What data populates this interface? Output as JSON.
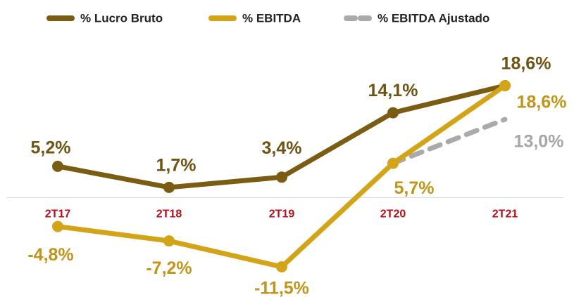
{
  "chart_data": {
    "type": "line",
    "categories": [
      "2T17",
      "2T18",
      "2T19",
      "2T20",
      "2T21"
    ],
    "series": [
      {
        "name": "% Lucro Bruto",
        "color": "#7a5c12",
        "values": [
          5.2,
          1.7,
          3.4,
          14.1,
          18.6
        ],
        "value_labels": [
          "5,2%",
          "1,7%",
          "3,4%",
          "14,1%",
          "18,6%"
        ]
      },
      {
        "name": "% EBITDA",
        "color": "#d4a418",
        "values": [
          -4.8,
          -7.2,
          -11.5,
          5.7,
          18.6
        ],
        "value_labels": [
          "-4,8%",
          "-7,2%",
          "-11,5%",
          "5,7%",
          "18,6%"
        ]
      },
      {
        "name": "% EBITDA Ajustado",
        "color": "#aaaaaa",
        "dashed": true,
        "values": [
          null,
          null,
          null,
          5.7,
          13.0
        ],
        "value_labels": [
          null,
          null,
          null,
          null,
          "13,0%"
        ]
      }
    ]
  }
}
